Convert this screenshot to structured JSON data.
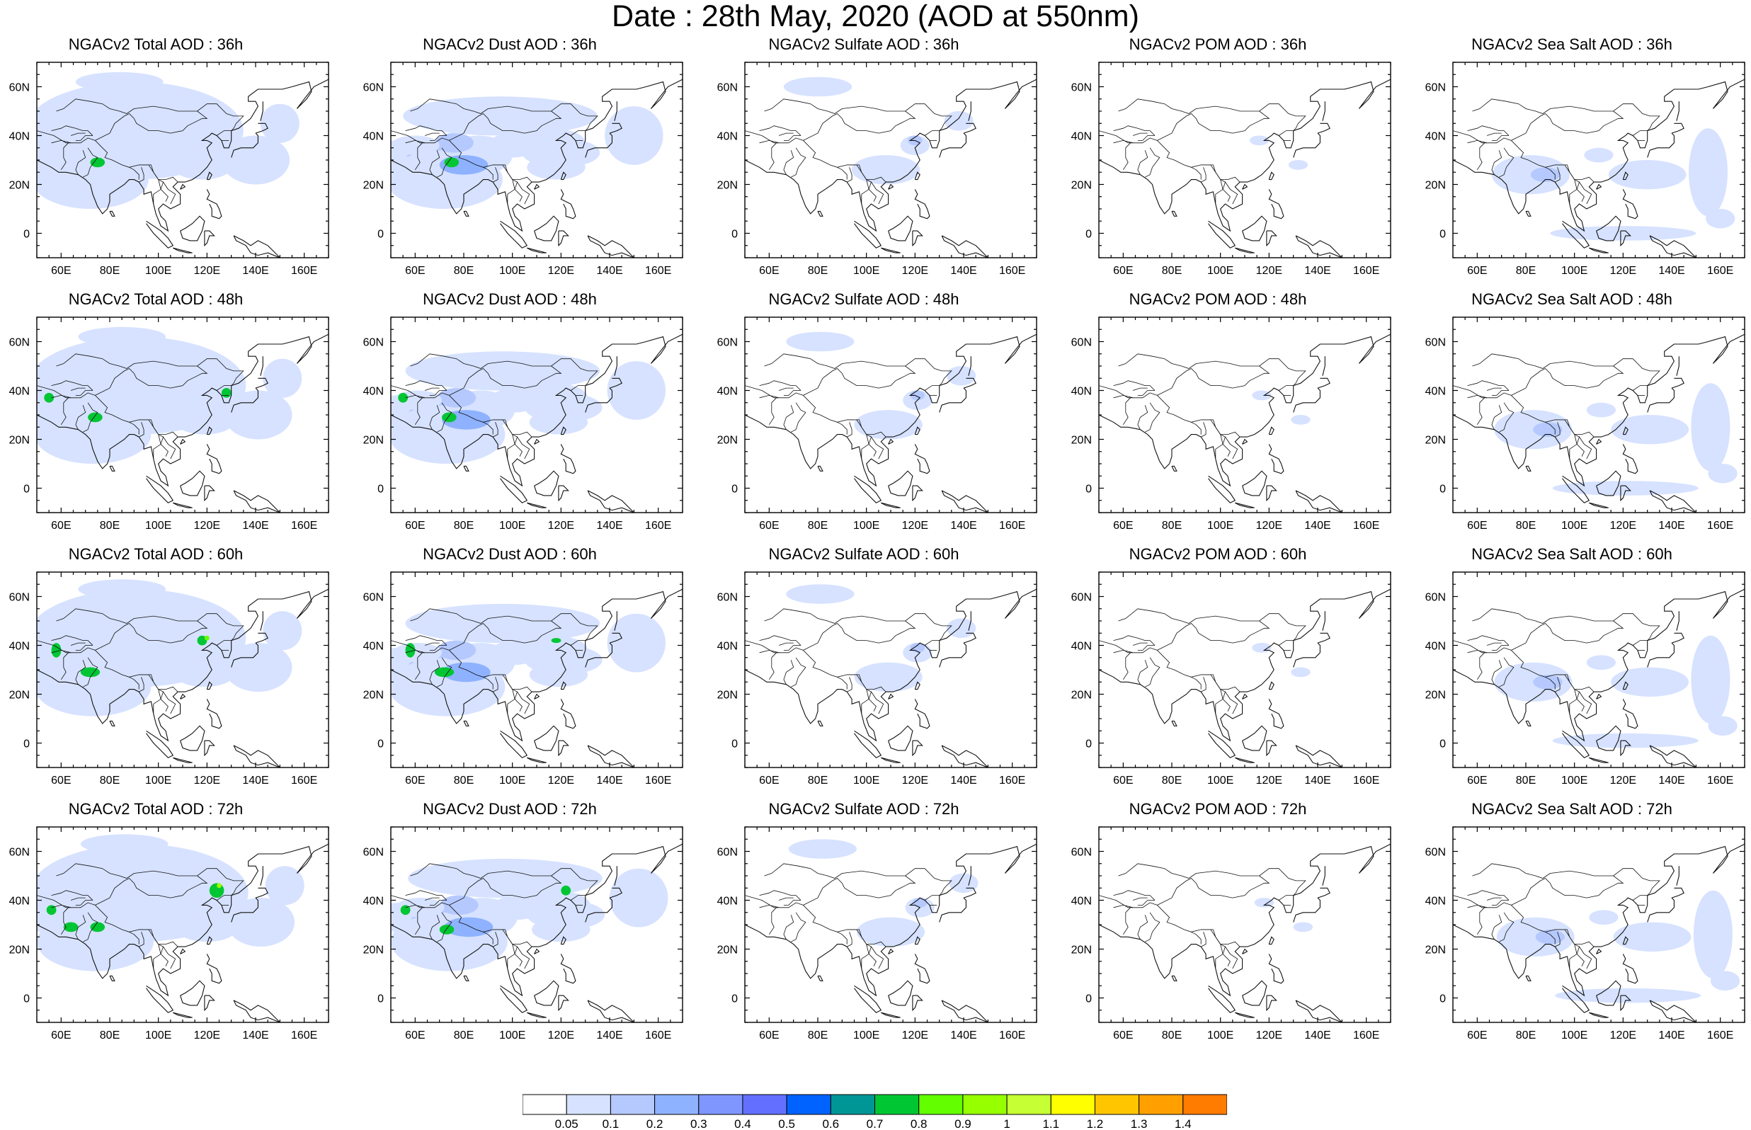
{
  "title": "Date : 28th May, 2020 (AOD at 550nm)",
  "x_ticks": [
    "60E",
    "80E",
    "100E",
    "120E",
    "140E",
    "160E"
  ],
  "y_ticks": [
    "60N",
    "40N",
    "20N",
    "0"
  ],
  "panels": [
    [
      "NGACv2 Total AOD : 36h",
      "NGACv2 Dust AOD : 36h",
      "NGACv2 Sulfate AOD : 36h",
      "NGACv2 POM AOD : 36h",
      "NGACv2 Sea Salt AOD : 36h"
    ],
    [
      "NGACv2 Total AOD : 48h",
      "NGACv2 Dust AOD : 48h",
      "NGACv2 Sulfate AOD : 48h",
      "NGACv2 POM AOD : 48h",
      "NGACv2 Sea Salt AOD : 48h"
    ],
    [
      "NGACv2 Total AOD : 60h",
      "NGACv2 Dust AOD : 60h",
      "NGACv2 Sulfate AOD : 60h",
      "NGACv2 POM AOD : 60h",
      "NGACv2 Sea Salt AOD : 60h"
    ],
    [
      "NGACv2 Total AOD : 72h",
      "NGACv2 Dust AOD : 72h",
      "NGACv2 Sulfate AOD : 72h",
      "NGACv2 POM AOD : 72h",
      "NGACv2 Sea Salt  AOD : 72h"
    ]
  ],
  "colorbar": {
    "labels": [
      "0.05",
      "0.1",
      "0.2",
      "0.3",
      "0.4",
      "0.5",
      "0.6",
      "0.7",
      "0.8",
      "0.9",
      "1",
      "1.1",
      "1.2",
      "1.3",
      "1.4"
    ],
    "colors": [
      "#ffffff",
      "#d6e2ff",
      "#b5c9ff",
      "#8eb2ff",
      "#7f96ff",
      "#6370ff",
      "#0063ff",
      "#009696",
      "#00c633",
      "#63ff00",
      "#96ff00",
      "#c6ff33",
      "#ffff00",
      "#ffc600",
      "#ffa000",
      "#ff7c00",
      "#ff1900"
    ]
  }
}
